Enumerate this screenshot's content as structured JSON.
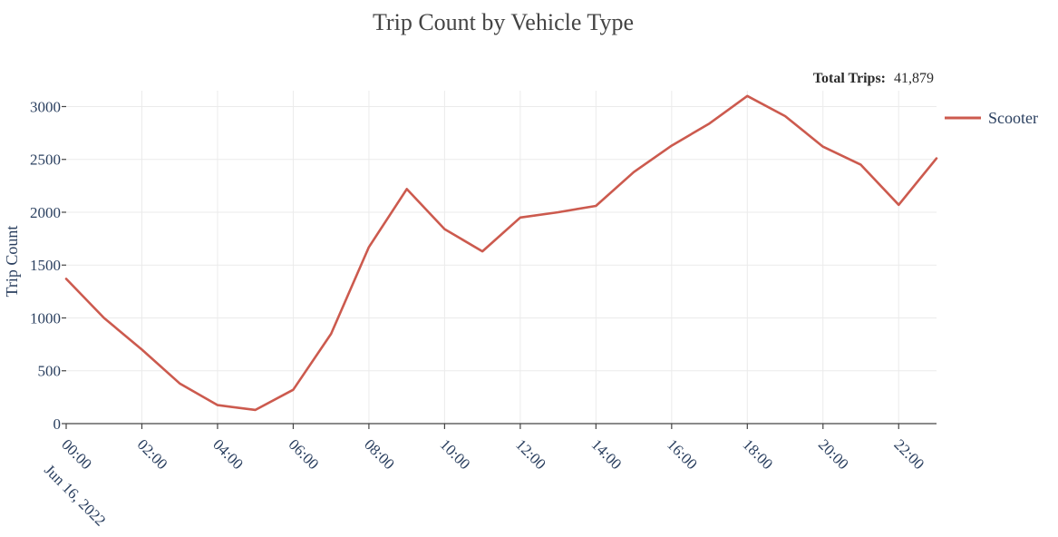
{
  "page": {
    "annotation_label": "Total Trips:",
    "annotation_value": "41,879"
  },
  "colors": {
    "series": "#cc5a4e",
    "grid": "#ebebeb",
    "axis": "#444444"
  },
  "chart_data": {
    "type": "line",
    "title": "Trip Count by Vehicle Type",
    "xlabel": "",
    "ylabel": "Trip Count",
    "x": [
      "00:00",
      "01:00",
      "02:00",
      "03:00",
      "04:00",
      "05:00",
      "06:00",
      "07:00",
      "08:00",
      "09:00",
      "10:00",
      "11:00",
      "12:00",
      "13:00",
      "14:00",
      "15:00",
      "16:00",
      "17:00",
      "18:00",
      "19:00",
      "20:00",
      "21:00",
      "22:00",
      "23:00"
    ],
    "x_tick_labels": [
      "00:00",
      "02:00",
      "04:00",
      "06:00",
      "08:00",
      "10:00",
      "12:00",
      "14:00",
      "16:00",
      "18:00",
      "20:00",
      "22:00"
    ],
    "x_date_label": "Jun 16, 2022",
    "y_tick_labels": [
      "0",
      "500",
      "1000",
      "1500",
      "2000",
      "2500",
      "3000"
    ],
    "ylim": [
      0,
      3150
    ],
    "grid": true,
    "legend_position": "top-right",
    "series": [
      {
        "name": "Scooter",
        "values": [
          1370,
          1000,
          700,
          380,
          175,
          130,
          320,
          850,
          1670,
          2220,
          1840,
          1630,
          1950,
          2000,
          2060,
          2380,
          2630,
          2840,
          3100,
          2910,
          2620,
          2450,
          2070,
          2510
        ]
      }
    ]
  }
}
